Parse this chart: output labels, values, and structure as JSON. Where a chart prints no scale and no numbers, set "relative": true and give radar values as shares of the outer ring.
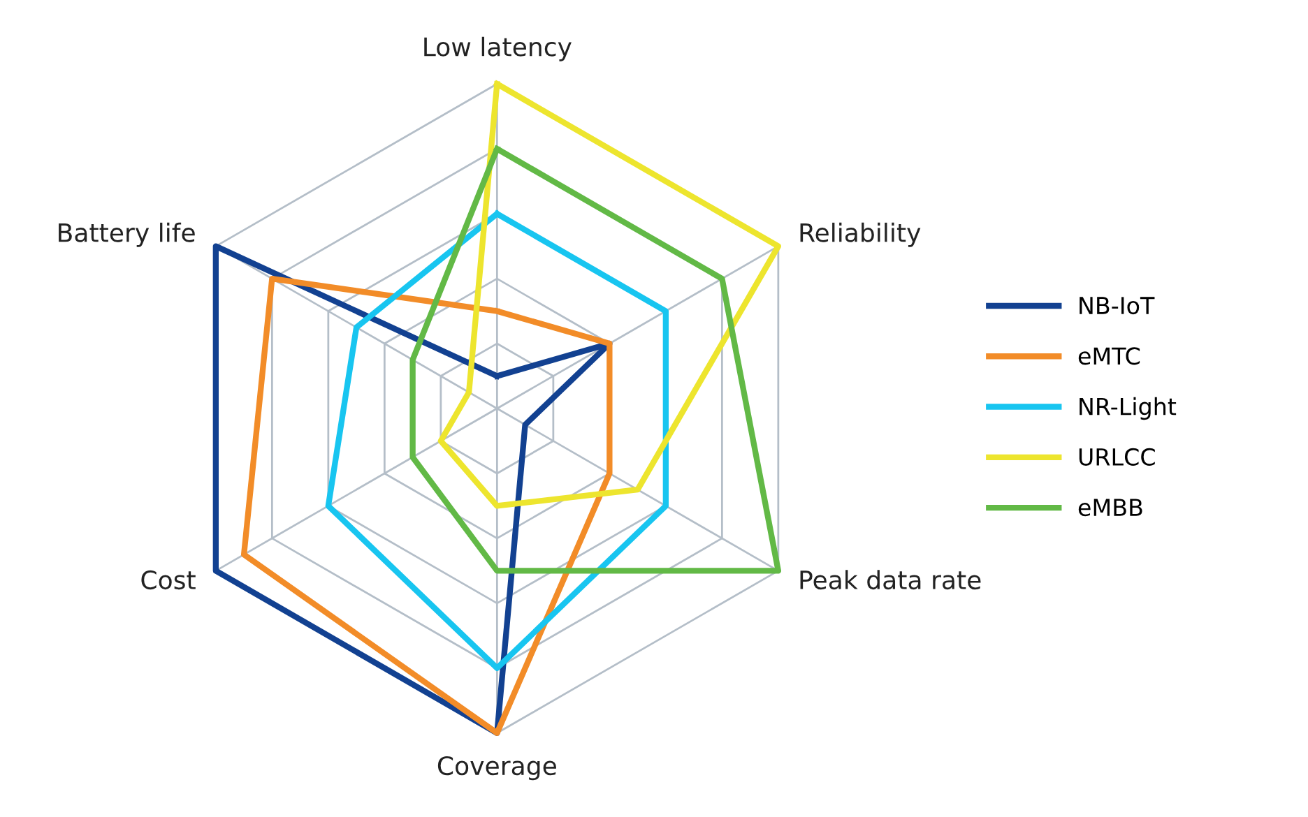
{
  "chart_data": {
    "type": "radar",
    "relative": true,
    "grid": true,
    "legend": "right",
    "line_style": "solid",
    "marker": "none",
    "categories": [
      "Low latency",
      "Reliability",
      "Peak data rate",
      "Coverage",
      "Cost",
      "Battery life"
    ],
    "series": [
      {
        "name": "NB-IoT",
        "color": "#124191",
        "values": [
          0.1,
          0.4,
          0.1,
          1.0,
          1.0,
          1.0
        ]
      },
      {
        "name": "eMTC",
        "color": "#f28c28",
        "values": [
          0.3,
          0.4,
          0.4,
          1.0,
          0.9,
          0.8
        ]
      },
      {
        "name": "NR-Light",
        "color": "#18c5f0",
        "values": [
          0.6,
          0.6,
          0.6,
          0.8,
          0.6,
          0.5
        ]
      },
      {
        "name": "URLCC",
        "color": "#ede52e",
        "values": [
          1.0,
          1.0,
          0.5,
          0.3,
          0.2,
          0.1
        ]
      },
      {
        "name": "eMBB",
        "color": "#62b946",
        "values": [
          0.8,
          0.8,
          1.0,
          0.5,
          0.3,
          0.3
        ]
      }
    ]
  }
}
